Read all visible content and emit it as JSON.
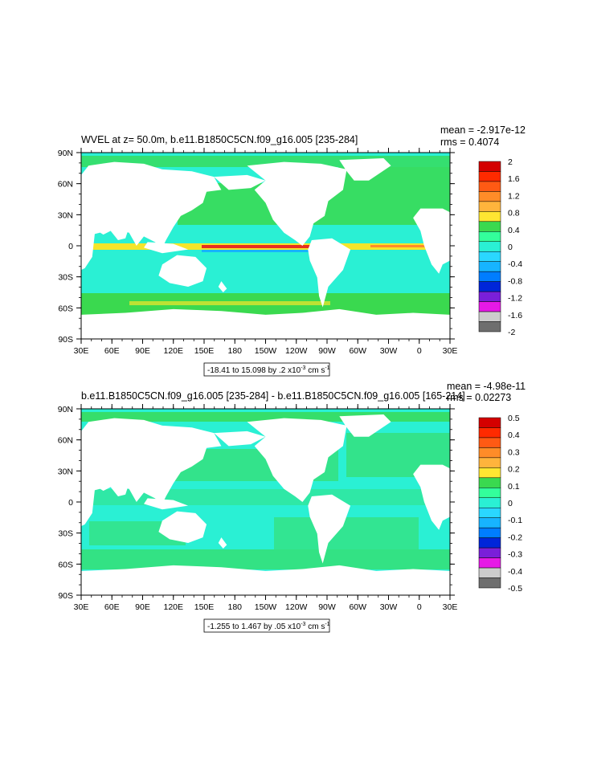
{
  "colors": {
    "ocean_base": "#2af0d4",
    "ocean_pos": "#3ad94f",
    "eq_hot": "#e6301e",
    "eq_warm": "#f5e52a",
    "land": "#ffffff"
  },
  "chart_data": [
    {
      "type": "heatmap",
      "title": "WVEL at z=  50.0m, b.e11.B1850C5CN.f09_g16.005 [235-284]",
      "stats": {
        "mean": "mean = -2.917e-12",
        "rms": "rms = 0.4074"
      },
      "contour_info": "-18.41 to 15.098 by .2 x10",
      "contour_exp": "-3",
      "contour_units": " cm s",
      "contour_units_exp": "-1",
      "x_ticks": [
        "30E",
        "60E",
        "90E",
        "120E",
        "150E",
        "180",
        "150W",
        "120W",
        "90W",
        "60W",
        "30W",
        "0",
        "30E"
      ],
      "y_ticks": [
        "90N",
        "60N",
        "30N",
        "0",
        "30S",
        "60S",
        "90S"
      ],
      "colorbar": {
        "labels": [
          "2",
          "1.6",
          "1.2",
          "0.8",
          "0.4",
          "0",
          "-0.4",
          "-0.8",
          "-1.2",
          "-1.6",
          "-2"
        ],
        "colors": [
          "#d40000",
          "#ff2a00",
          "#ff5a14",
          "#ff8c28",
          "#ffb43c",
          "#ffe632",
          "#3ad94f",
          "#33ff9b",
          "#2af0d4",
          "#2ad7ff",
          "#17b4ff",
          "#007dff",
          "#0026d9",
          "#7a1fd9",
          "#e619e6",
          "#cccccc",
          "#6e6e6e"
        ]
      }
    },
    {
      "type": "heatmap",
      "title": "b.e11.B1850C5CN.f09_g16.005 [235-284] - b.e11.B1850C5CN.f09_g16.005 [165-214]",
      "stats": {
        "mean": "mean = -4.98e-11",
        "rms": "rms = 0.02273"
      },
      "contour_info": "-1.255 to 1.467 by .05 x10",
      "contour_exp": "-3",
      "contour_units": " cm s",
      "contour_units_exp": "-1",
      "x_ticks": [
        "30E",
        "60E",
        "90E",
        "120E",
        "150E",
        "180",
        "150W",
        "120W",
        "90W",
        "60W",
        "30W",
        "0",
        "30E"
      ],
      "y_ticks": [
        "90N",
        "60N",
        "30N",
        "0",
        "30S",
        "60S",
        "90S"
      ],
      "colorbar": {
        "labels": [
          "0.5",
          "0.4",
          "0.3",
          "0.2",
          "0.1",
          "0",
          "-0.1",
          "-0.2",
          "-0.3",
          "-0.4",
          "-0.5"
        ],
        "colors": [
          "#d40000",
          "#ff2a00",
          "#ff5a14",
          "#ff8c28",
          "#ffb43c",
          "#ffe632",
          "#3ad94f",
          "#33ff9b",
          "#2af0d4",
          "#2ad7ff",
          "#17b4ff",
          "#007dff",
          "#0026d9",
          "#7a1fd9",
          "#e619e6",
          "#cccccc",
          "#6e6e6e"
        ]
      }
    }
  ]
}
